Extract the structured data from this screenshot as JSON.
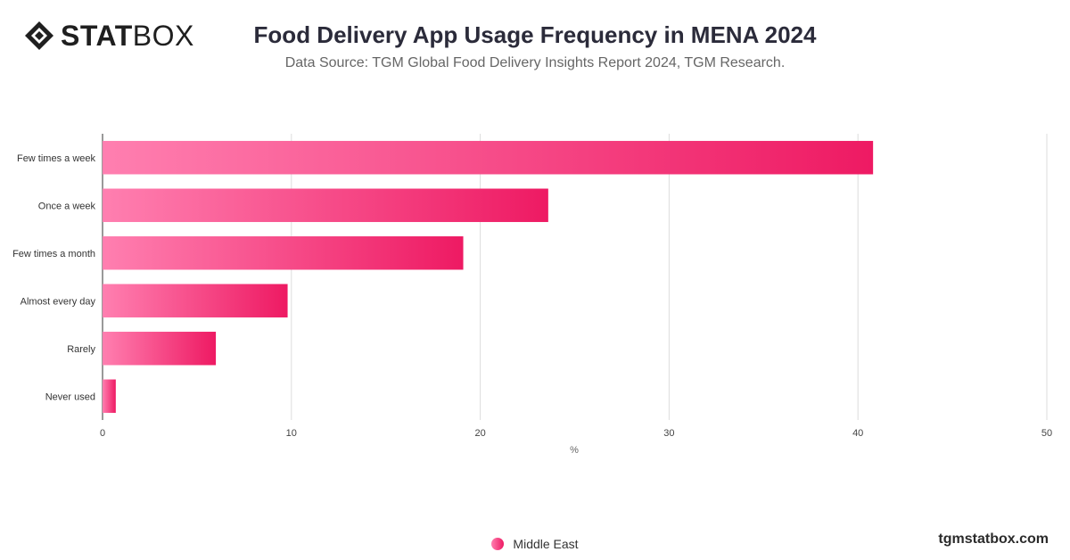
{
  "brand": {
    "logo_bold": "STAT",
    "logo_light": "BOX",
    "website": "tgmstatbox.com"
  },
  "chart_data": {
    "type": "bar",
    "orientation": "horizontal",
    "title": "Food Delivery App Usage Frequency in MENA 2024",
    "subtitle": "Data Source: TGM Global Food Delivery Insights Report 2024, TGM Research.",
    "categories": [
      "Few times a week",
      "Once a week",
      "Few times a month",
      "Almost every day",
      "Rarely",
      "Never used"
    ],
    "series": [
      {
        "name": "Middle East",
        "values": [
          40.8,
          23.6,
          19.1,
          9.8,
          6.0,
          0.7
        ]
      }
    ],
    "xlabel": "%",
    "xlim": [
      0,
      50
    ],
    "xticks": [
      0,
      10,
      20,
      30,
      40,
      50
    ],
    "grid": true,
    "legend": "bottom-center",
    "colors": {
      "bar_start": "#ff7fb0",
      "bar_end": "#ee1a63",
      "grid": "#dddddd",
      "axis": "#333333"
    }
  }
}
